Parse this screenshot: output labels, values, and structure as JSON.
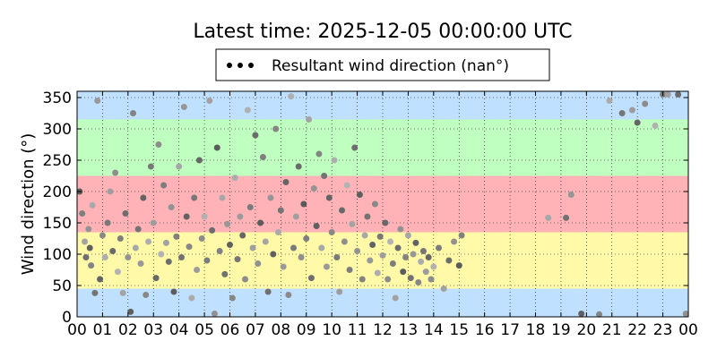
{
  "chart_data": {
    "type": "scatter",
    "title": "Latest time: 2025-12-05 00:00:00 UTC",
    "ylabel": "Wind direction (°)",
    "legend": [
      "Resultant wind direction (nan°)"
    ],
    "legend_placement": "top-center",
    "x_ticks": [
      "00",
      "01",
      "02",
      "03",
      "04",
      "05",
      "06",
      "07",
      "08",
      "09",
      "10",
      "11",
      "12",
      "13",
      "14",
      "15",
      "16",
      "17",
      "18",
      "19",
      "20",
      "21",
      "22",
      "23",
      "00"
    ],
    "y_ticks": [
      0,
      50,
      100,
      150,
      200,
      250,
      300,
      350
    ],
    "xlim": [
      0,
      24
    ],
    "ylim": [
      0,
      360
    ],
    "grid": true,
    "bands": [
      {
        "from": 0,
        "to": 45,
        "color": "#bfe0ff"
      },
      {
        "from": 45,
        "to": 135,
        "color": "#fff9a8"
      },
      {
        "from": 135,
        "to": 225,
        "color": "#ffb3b7"
      },
      {
        "from": 225,
        "to": 315,
        "color": "#bfffbf"
      },
      {
        "from": 315,
        "to": 360,
        "color": "#bfe0ff"
      }
    ],
    "series": [
      {
        "name": "Resultant wind direction (nan°)",
        "color": "#888888",
        "points": [
          [
            0.1,
            200
          ],
          [
            0.2,
            165
          ],
          [
            0.3,
            120
          ],
          [
            0.35,
            95
          ],
          [
            0.45,
            140
          ],
          [
            0.5,
            110
          ],
          [
            0.55,
            82
          ],
          [
            0.6,
            178
          ],
          [
            0.7,
            38
          ],
          [
            0.8,
            345
          ],
          [
            0.9,
            60
          ],
          [
            1.0,
            130
          ],
          [
            1.1,
            95
          ],
          [
            1.2,
            150
          ],
          [
            1.3,
            200
          ],
          [
            1.4,
            105
          ],
          [
            1.5,
            230
          ],
          [
            1.6,
            72
          ],
          [
            1.7,
            125
          ],
          [
            1.8,
            38
          ],
          [
            1.9,
            165
          ],
          [
            2.0,
            95
          ],
          [
            2.1,
            8
          ],
          [
            2.2,
            325
          ],
          [
            2.3,
            110
          ],
          [
            2.4,
            140
          ],
          [
            2.5,
            85
          ],
          [
            2.6,
            190
          ],
          [
            2.7,
            35
          ],
          [
            2.8,
            120
          ],
          [
            2.9,
            240
          ],
          [
            3.0,
            150
          ],
          [
            3.1,
            62
          ],
          [
            3.2,
            275
          ],
          [
            3.3,
            100
          ],
          [
            3.4,
            210
          ],
          [
            3.5,
            118
          ],
          [
            3.6,
            88
          ],
          [
            3.7,
            175
          ],
          [
            3.8,
            40
          ],
          [
            3.9,
            128
          ],
          [
            4.0,
            240
          ],
          [
            4.1,
            95
          ],
          [
            4.2,
            335
          ],
          [
            4.3,
            160
          ],
          [
            4.4,
            112
          ],
          [
            4.5,
            30
          ],
          [
            4.6,
            190
          ],
          [
            4.7,
            75
          ],
          [
            4.8,
            250
          ],
          [
            4.9,
            125
          ],
          [
            5.0,
            160
          ],
          [
            5.1,
            90
          ],
          [
            5.2,
            345
          ],
          [
            5.3,
            138
          ],
          [
            5.4,
            5
          ],
          [
            5.5,
            270
          ],
          [
            5.6,
            105
          ],
          [
            5.7,
            190
          ],
          [
            5.8,
            68
          ],
          [
            5.9,
            148
          ],
          [
            6.0,
            115
          ],
          [
            6.1,
            30
          ],
          [
            6.2,
            222
          ],
          [
            6.3,
            92
          ],
          [
            6.4,
            160
          ],
          [
            6.5,
            130
          ],
          [
            6.6,
            60
          ],
          [
            6.7,
            330
          ],
          [
            6.8,
            175
          ],
          [
            6.9,
            110
          ],
          [
            7.0,
            290
          ],
          [
            7.1,
            85
          ],
          [
            7.2,
            150
          ],
          [
            7.3,
            255
          ],
          [
            7.4,
            120
          ],
          [
            7.5,
            40
          ],
          [
            7.6,
            190
          ],
          [
            7.7,
            100
          ],
          [
            7.8,
            300
          ],
          [
            7.9,
            135
          ],
          [
            8.0,
            170
          ],
          [
            8.1,
            80
          ],
          [
            8.2,
            215
          ],
          [
            8.3,
            35
          ],
          [
            8.4,
            352
          ],
          [
            8.5,
            110
          ],
          [
            8.6,
            160
          ],
          [
            8.7,
            240
          ],
          [
            8.8,
            95
          ],
          [
            8.9,
            180
          ],
          [
            9.0,
            125
          ],
          [
            9.1,
            315
          ],
          [
            9.2,
            62
          ],
          [
            9.3,
            205
          ],
          [
            9.4,
            145
          ],
          [
            9.5,
            260
          ],
          [
            9.6,
            110
          ],
          [
            9.7,
            225
          ],
          [
            9.8,
            80
          ],
          [
            9.9,
            190
          ],
          [
            10.0,
            135
          ],
          [
            10.1,
            250
          ],
          [
            10.2,
            95
          ],
          [
            10.3,
            40
          ],
          [
            10.4,
            170
          ],
          [
            10.5,
            120
          ],
          [
            10.6,
            210
          ],
          [
            10.7,
            75
          ],
          [
            10.8,
            148
          ],
          [
            10.9,
            270
          ],
          [
            11.0,
            105
          ],
          [
            11.1,
            195
          ],
          [
            11.2,
            60
          ],
          [
            11.3,
            130
          ],
          [
            11.4,
            160
          ],
          [
            11.5,
            90
          ],
          [
            11.6,
            115
          ],
          [
            11.7,
            180
          ],
          [
            11.8,
            70
          ],
          [
            11.9,
            128
          ],
          [
            12.0,
            98
          ],
          [
            12.1,
            150
          ],
          [
            12.2,
            60
          ],
          [
            12.3,
            120
          ],
          [
            12.4,
            85
          ],
          [
            12.5,
            30
          ],
          [
            12.6,
            110
          ],
          [
            12.7,
            140
          ],
          [
            12.8,
            72
          ],
          [
            12.9,
            95
          ],
          [
            13.0,
            130
          ],
          [
            13.1,
            62
          ],
          [
            13.2,
            100
          ],
          [
            13.3,
            118
          ],
          [
            13.4,
            55
          ],
          [
            13.5,
            88
          ],
          [
            13.6,
            105
          ],
          [
            13.7,
            72
          ],
          [
            13.8,
            95
          ],
          [
            13.9,
            60
          ],
          [
            14.0,
            80
          ],
          [
            14.2,
            110
          ],
          [
            14.4,
            45
          ],
          [
            14.6,
            90
          ],
          [
            14.8,
            120
          ],
          [
            15.0,
            82
          ],
          [
            15.1,
            130
          ],
          [
            18.5,
            158
          ],
          [
            19.2,
            158
          ],
          [
            19.4,
            195
          ],
          [
            19.8,
            5
          ],
          [
            20.5,
            4
          ],
          [
            20.9,
            345
          ],
          [
            21.4,
            325
          ],
          [
            21.8,
            330
          ],
          [
            22.0,
            310
          ],
          [
            22.3,
            340
          ],
          [
            22.7,
            305
          ],
          [
            23.0,
            355
          ],
          [
            23.2,
            355
          ],
          [
            23.6,
            355
          ],
          [
            23.9,
            5
          ]
        ]
      }
    ]
  }
}
